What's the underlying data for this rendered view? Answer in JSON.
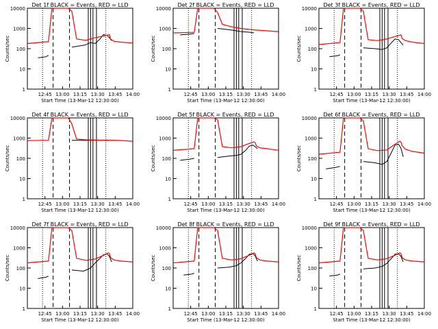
{
  "figure": {
    "title_suffix": "BLACK = Events, RED = LLD",
    "ylabel": "Counts/sec",
    "xlabel": "Start Time (13-Mar-12 12:30:00)",
    "y_ticks": [
      "1",
      "10",
      "100",
      "1000",
      "10000"
    ],
    "x_ticks": [
      "12:45",
      "13:00",
      "13:15",
      "13:30",
      "13:45",
      "14:00"
    ],
    "colors": {
      "events": "#000000",
      "lld": "#ff0000",
      "axes": "#000000"
    }
  },
  "chart_data": [
    {
      "type": "line",
      "detector": "1f",
      "title": "Det 1f BLACK = Events, RED = LLD",
      "ylim": [
        1,
        10000
      ],
      "xlim_minutes": [
        30,
        120
      ],
      "series": [
        {
          "name": "Events",
          "x": [
            39,
            46,
            48
          ],
          "values": [
            35,
            40,
            47
          ],
          "x2": [
            68,
            79,
            84,
            88,
            92,
            95,
            98,
            100,
            102
          ],
          "values2": [
            120,
            150,
            200,
            180,
            300,
            500,
            450,
            350,
            250
          ]
        },
        {
          "name": "LLD",
          "x": [
            30,
            48,
            51,
            53,
            57,
            65,
            68,
            72,
            80,
            88,
            95,
            99,
            100,
            101,
            104,
            110,
            120
          ],
          "values": [
            180,
            220,
            10000,
            10000,
            10000,
            10000,
            7000,
            300,
            260,
            350,
            420,
            480,
            500,
            300,
            230,
            210,
            190
          ]
        }
      ],
      "solid_lines_minutes": [
        82,
        84,
        86,
        89
      ],
      "dashed_lines_minutes": [
        52,
        66
      ],
      "dotted_lines_minutes": [
        43,
        97
      ]
    },
    {
      "type": "line",
      "detector": "2f",
      "title": "Det 2f BLACK = Events, RED = LLD",
      "ylim": [
        1,
        10000
      ],
      "xlim_minutes": [
        30,
        120
      ],
      "series": [
        {
          "name": "Events",
          "x": [
            36,
            44,
            48
          ],
          "values": [
            480,
            520,
            560
          ],
          "x2": [
            68,
            75,
            82,
            88,
            95,
            99
          ],
          "values2": [
            1000,
            900,
            800,
            700,
            650,
            600
          ]
        },
        {
          "name": "LLD",
          "x": [
            30,
            48,
            51,
            53,
            57,
            65,
            68,
            72,
            80,
            88,
            95,
            99,
            105,
            120
          ],
          "values": [
            600,
            640,
            10000,
            10000,
            10000,
            10000,
            6000,
            1600,
            1200,
            1000,
            900,
            850,
            800,
            700
          ]
        }
      ],
      "solid_lines_minutes": [
        82,
        84,
        86,
        89
      ],
      "dashed_lines_minutes": [
        52,
        66
      ],
      "dotted_lines_minutes": [
        43,
        97
      ]
    },
    {
      "type": "line",
      "detector": "3f",
      "title": "Det 3f BLACK = Events, RED = LLD",
      "ylim": [
        1,
        10000
      ],
      "xlim_minutes": [
        30,
        120
      ],
      "series": [
        {
          "name": "Events",
          "x": [
            39,
            46,
            48
          ],
          "values": [
            40,
            45,
            50
          ],
          "x2": [
            68,
            78,
            84,
            88,
            92,
            95,
            98,
            100,
            102
          ],
          "values2": [
            110,
            100,
            90,
            110,
            200,
            300,
            280,
            200,
            150
          ]
        },
        {
          "name": "LLD",
          "x": [
            30,
            48,
            51,
            53,
            57,
            65,
            68,
            72,
            80,
            88,
            95,
            99,
            100,
            101,
            104,
            110,
            120
          ],
          "values": [
            160,
            200,
            10000,
            10000,
            10000,
            10000,
            7000,
            280,
            250,
            300,
            400,
            460,
            480,
            320,
            250,
            210,
            180
          ]
        }
      ],
      "solid_lines_minutes": [
        82,
        84,
        86,
        89
      ],
      "dashed_lines_minutes": [
        52,
        66
      ],
      "dotted_lines_minutes": [
        43,
        97
      ]
    },
    {
      "type": "line",
      "detector": "4f",
      "title": "Det 4f BLACK = Events, RED = LLD",
      "ylim": [
        1,
        10000
      ],
      "xlim_minutes": [
        30,
        120
      ],
      "series": [
        {
          "name": "Events",
          "x": [],
          "values": [],
          "x2": [
            68,
            80,
            90,
            100
          ],
          "values2": [
            780,
            780,
            790,
            780
          ]
        },
        {
          "name": "LLD",
          "x": [
            30,
            48,
            51,
            53,
            57,
            65,
            68,
            72,
            80,
            90,
            100,
            110,
            120
          ],
          "values": [
            750,
            780,
            10000,
            10000,
            10000,
            10000,
            5000,
            900,
            820,
            800,
            790,
            760,
            700
          ]
        }
      ],
      "solid_lines_minutes": [
        82,
        84,
        86,
        89
      ],
      "dashed_lines_minutes": [
        52,
        66
      ],
      "dotted_lines_minutes": [
        43,
        97
      ]
    },
    {
      "type": "line",
      "detector": "5f",
      "title": "Det 5f BLACK = Events, RED = LLD",
      "ylim": [
        1,
        10000
      ],
      "xlim_minutes": [
        30,
        120
      ],
      "series": [
        {
          "name": "Events",
          "x": [
            36,
            44,
            48
          ],
          "values": [
            80,
            90,
            100
          ],
          "x2": [
            68,
            78,
            84,
            88,
            92,
            95,
            98,
            100,
            102
          ],
          "values2": [
            110,
            130,
            140,
            160,
            250,
            400,
            450,
            380,
            300
          ]
        },
        {
          "name": "LLD",
          "x": [
            30,
            48,
            51,
            53,
            57,
            65,
            68,
            72,
            80,
            88,
            95,
            99,
            100,
            101,
            104,
            110,
            120
          ],
          "values": [
            250,
            300,
            10000,
            10000,
            10000,
            10000,
            8000,
            380,
            330,
            380,
            550,
            650,
            600,
            420,
            330,
            300,
            250
          ]
        }
      ],
      "solid_lines_minutes": [
        82,
        84,
        86,
        89
      ],
      "dashed_lines_minutes": [
        52,
        66
      ],
      "dotted_lines_minutes": [
        43,
        97
      ]
    },
    {
      "type": "line",
      "detector": "6f",
      "title": "Det 6f BLACK = Events, RED = LLD",
      "ylim": [
        1,
        10000
      ],
      "xlim_minutes": [
        30,
        120
      ],
      "series": [
        {
          "name": "Events",
          "x": [
            36,
            44,
            48
          ],
          "values": [
            30,
            35,
            40
          ],
          "x2": [
            68,
            78,
            84,
            88,
            92,
            95,
            98,
            100,
            102
          ],
          "values2": [
            70,
            60,
            50,
            70,
            200,
            450,
            500,
            320,
            120
          ]
        },
        {
          "name": "LLD",
          "x": [
            30,
            48,
            51,
            53,
            57,
            65,
            68,
            72,
            80,
            88,
            95,
            99,
            100,
            101,
            104,
            110,
            120
          ],
          "values": [
            160,
            200,
            10000,
            10000,
            10000,
            10000,
            7000,
            300,
            240,
            260,
            500,
            700,
            650,
            420,
            280,
            220,
            180
          ]
        }
      ],
      "solid_lines_minutes": [
        82,
        84,
        86,
        89
      ],
      "dashed_lines_minutes": [
        52,
        66
      ],
      "dotted_lines_minutes": [
        43,
        97
      ]
    },
    {
      "type": "line",
      "detector": "7f",
      "title": "Det 7f BLACK = Events, RED = LLD",
      "ylim": [
        1,
        10000
      ],
      "xlim_minutes": [
        30,
        120
      ],
      "series": [
        {
          "name": "Events",
          "x": [
            39,
            46,
            48
          ],
          "values": [
            30,
            35,
            40
          ],
          "x2": [
            68,
            78,
            84,
            88,
            92,
            95,
            98,
            100,
            102
          ],
          "values2": [
            80,
            70,
            100,
            180,
            300,
            450,
            500,
            380,
            200
          ]
        },
        {
          "name": "LLD",
          "x": [
            30,
            48,
            51,
            53,
            57,
            65,
            68,
            72,
            80,
            88,
            95,
            99,
            100,
            101,
            104,
            110,
            120
          ],
          "values": [
            180,
            220,
            10000,
            10000,
            10000,
            10000,
            7000,
            300,
            240,
            280,
            420,
            560,
            520,
            330,
            250,
            220,
            200
          ]
        }
      ],
      "solid_lines_minutes": [
        82,
        84,
        86,
        89
      ],
      "dashed_lines_minutes": [
        52,
        66
      ],
      "dotted_lines_minutes": [
        43,
        97
      ]
    },
    {
      "type": "line",
      "detector": "8f",
      "title": "Det 8f BLACK = Events, RED = LLD",
      "ylim": [
        1,
        10000
      ],
      "xlim_minutes": [
        30,
        120
      ],
      "series": [
        {
          "name": "Events",
          "x": [
            39,
            46,
            48
          ],
          "values": [
            45,
            50,
            55
          ],
          "x2": [
            68,
            78,
            84,
            88,
            92,
            95,
            98,
            100,
            102
          ],
          "values2": [
            100,
            110,
            130,
            180,
            300,
            480,
            520,
            400,
            220
          ]
        },
        {
          "name": "LLD",
          "x": [
            30,
            48,
            51,
            53,
            57,
            65,
            68,
            72,
            80,
            88,
            95,
            99,
            100,
            101,
            104,
            110,
            120
          ],
          "values": [
            180,
            220,
            10000,
            10000,
            10000,
            10000,
            7000,
            300,
            250,
            290,
            430,
            560,
            520,
            330,
            250,
            220,
            200
          ]
        }
      ],
      "solid_lines_minutes": [
        82,
        84,
        86,
        89
      ],
      "dashed_lines_minutes": [
        52,
        66
      ],
      "dotted_lines_minutes": [
        43,
        97
      ]
    },
    {
      "type": "line",
      "detector": "9f",
      "title": "Det 9f BLACK = Events, RED = LLD",
      "ylim": [
        1,
        10000
      ],
      "xlim_minutes": [
        30,
        120
      ],
      "series": [
        {
          "name": "Events",
          "x": [
            39,
            46,
            48
          ],
          "values": [
            40,
            45,
            50
          ],
          "x2": [
            68,
            78,
            84,
            88,
            92,
            95,
            98,
            100,
            102
          ],
          "values2": [
            90,
            100,
            120,
            170,
            300,
            480,
            500,
            380,
            200
          ]
        },
        {
          "name": "LLD",
          "x": [
            30,
            48,
            51,
            53,
            57,
            65,
            68,
            72,
            80,
            88,
            95,
            99,
            100,
            101,
            104,
            110,
            120
          ],
          "values": [
            180,
            220,
            10000,
            10000,
            10000,
            10000,
            7000,
            300,
            250,
            290,
            430,
            560,
            520,
            330,
            250,
            220,
            200
          ]
        }
      ],
      "solid_lines_minutes": [
        82,
        84,
        86,
        89
      ],
      "dashed_lines_minutes": [
        52,
        66
      ],
      "dotted_lines_minutes": [
        43,
        97
      ]
    }
  ]
}
